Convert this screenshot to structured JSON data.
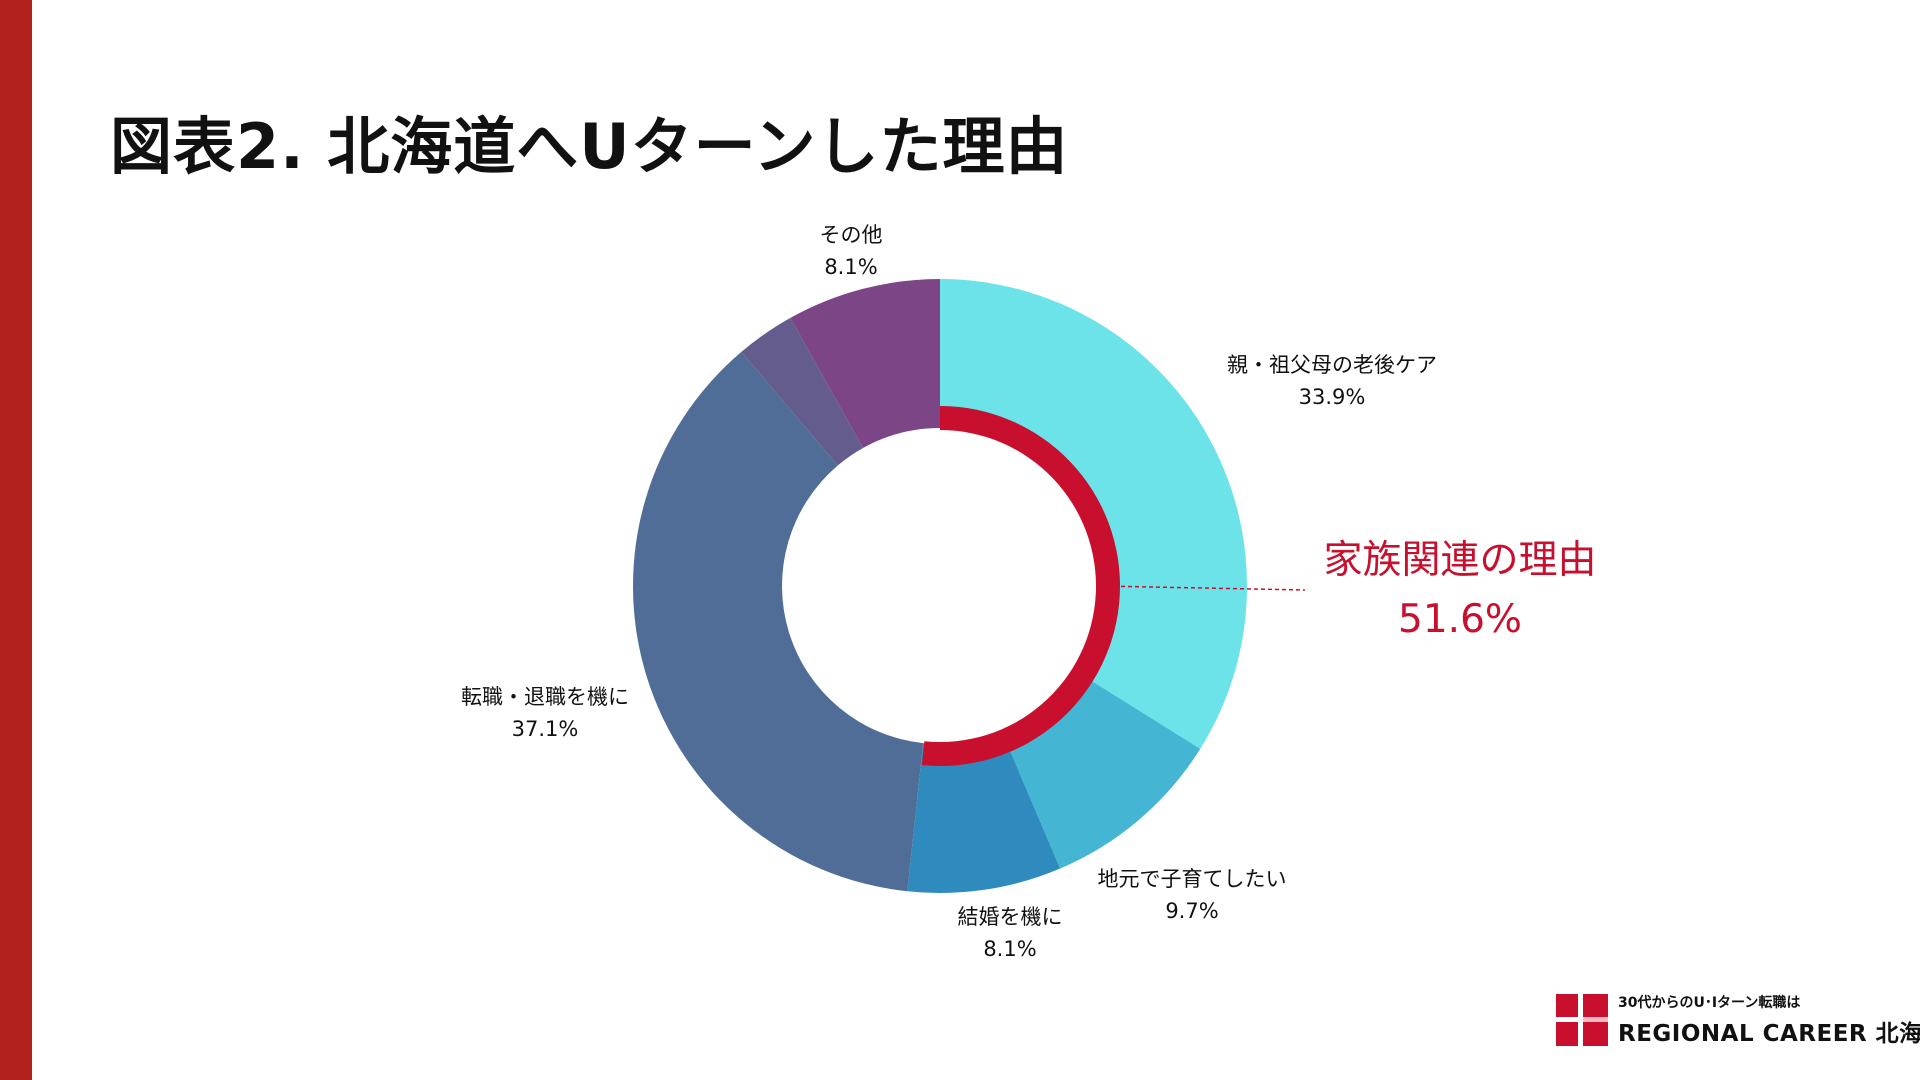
{
  "title": "図表2. 北海道へUターンした理由",
  "colors": {
    "accent_bar": "#B3211F",
    "family_highlight": "#C8102E",
    "logo_red": "#C8102E"
  },
  "chart_data": {
    "type": "donut",
    "title": "図表2. 北海道へUターンした理由",
    "unit": "%",
    "start_angle_deg": 0,
    "direction": "clockwise",
    "slices": [
      {
        "label": "親・祖父母の老後ケア",
        "value": 33.9,
        "value_text": "33.9%",
        "color": "#6CE3E8"
      },
      {
        "label": "地元で子育てしたい",
        "value": 9.7,
        "value_text": "9.7%",
        "color": "#44B6D4"
      },
      {
        "label": "結婚を機に",
        "value": 8.1,
        "value_text": "8.1%",
        "color": "#2F8BBE"
      },
      {
        "label": "転職・退職を機に",
        "value": 37.1,
        "value_text": "37.1%",
        "color": "#4F6D97"
      },
      {
        "label": "",
        "value": 3.1,
        "value_text": "",
        "color": "#655C8E"
      },
      {
        "label": "その他",
        "value": 8.1,
        "value_text": "8.1%",
        "color": "#7B4586"
      }
    ],
    "highlight": {
      "label": "家族関連の理由",
      "value": 51.6,
      "value_text": "51.6%",
      "slices": [
        "親・祖父母の老後ケア",
        "地元で子育てしたい",
        "結婚を機に"
      ],
      "color": "#C8102E"
    }
  },
  "logo": {
    "tagline": "30代からのU･Iターン転職は",
    "brand": "REGIONAL CAREER 北海道"
  }
}
